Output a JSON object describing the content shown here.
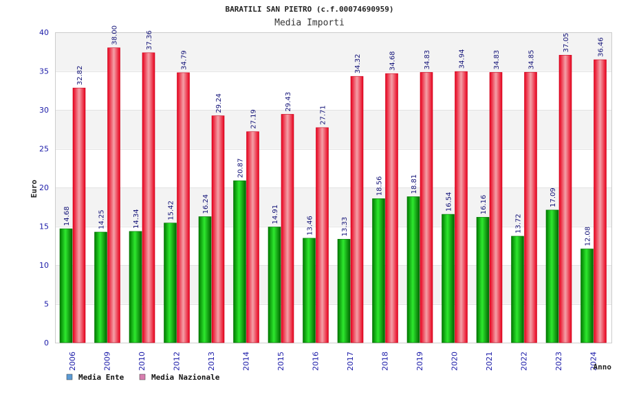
{
  "chart_data": {
    "type": "bar",
    "title": "BARATILI SAN PIETRO (c.f.00074690959)",
    "subtitle": "Media Importi",
    "xlabel": "Anno",
    "ylabel": "Euro",
    "ylim": [
      0,
      40
    ],
    "yticks": [
      0,
      5,
      10,
      15,
      20,
      25,
      30,
      35,
      40
    ],
    "categories": [
      "2006",
      "2009",
      "2010",
      "2012",
      "2013",
      "2014",
      "2015",
      "2016",
      "2017",
      "2018",
      "2019",
      "2020",
      "2021",
      "2022",
      "2023",
      "2024"
    ],
    "series": [
      {
        "name": "Media Ente",
        "color": "#00b400",
        "values": [
          14.68,
          14.25,
          14.34,
          15.42,
          16.24,
          20.87,
          14.91,
          13.46,
          13.33,
          18.56,
          18.81,
          16.54,
          16.16,
          13.72,
          17.09,
          12.08
        ],
        "labels": [
          "14.68",
          "14.25",
          "14.34",
          "15.42",
          "16.24",
          "20.87",
          "14.91",
          "13.46",
          "13.33",
          "18.56",
          "18.81",
          "16.54",
          "16.16",
          "13.72",
          "17.09",
          "12.08"
        ]
      },
      {
        "name": "Media Nazionale",
        "color": "#e8001c",
        "values": [
          32.82,
          38.0,
          37.36,
          34.79,
          29.24,
          27.19,
          29.43,
          27.71,
          34.32,
          34.68,
          34.83,
          34.94,
          34.83,
          34.85,
          37.05,
          36.46
        ],
        "labels": [
          "32.82",
          "38.00",
          "37.36",
          "34.79",
          "29.24",
          "27.19",
          "29.43",
          "27.71",
          "34.32",
          "34.68",
          "34.83",
          "34.94",
          "34.83",
          "34.85",
          "37.05",
          "36.46"
        ]
      }
    ],
    "legend": {
      "placement": "bottom-left",
      "items": [
        {
          "label": "Media Ente",
          "swatch": "#5b9bd5"
        },
        {
          "label": "Media Nazionale",
          "swatch": "#d87fb0"
        }
      ]
    },
    "grid": true
  }
}
